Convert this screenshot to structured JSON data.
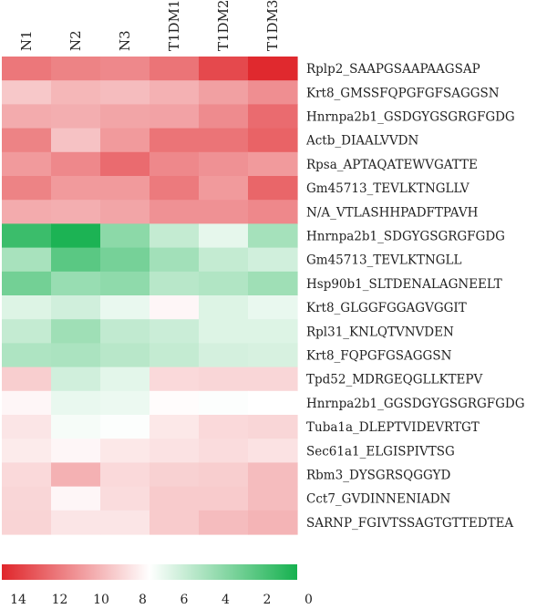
{
  "chart_data": {
    "type": "heatmap",
    "columns": [
      "N1",
      "N2",
      "N3",
      "T1DM1",
      "T1DM2",
      "T1DM3"
    ],
    "rows": [
      "Rplp2_SAAPGSAAPAAGSAP",
      "Krt8_GMSSFQPGFGFSAGGSN",
      "Hnrnpa2b1_GSDGYGSGRGFGDG",
      "Actb_DIAALVVDN",
      "Rpsa_APTAQATEWVGATTE",
      "Gm45713_TEVLKTNGLLV",
      "N/A_VTLASHHPADFTPAVH",
      "Hnrnpa2b1_SDGYGSGRGFGDG",
      "Gm45713_TEVLKTNGLL",
      "Hsp90b1_SLTDENALAGNEELT",
      "Krt8_GLGGFGGAGVGGIT",
      "Rpl31_KNLQTVNVDEN",
      "Krt8_FQPGFGSAGGSN",
      "Tpd52_MDRGEQGLLKTEPV",
      "Hnrnpa2b1_GGSDGYGSGRGFGDG",
      "Tuba1a_DLEPTVIDEVRTGT",
      "Sec61a1_ELGISPIVTSG",
      "Rbm3_DYSGRSQGGYD",
      "Cct7_GVDINNENIADN",
      "SARNP_FGIVTSSAGTGTTEDTEA"
    ],
    "values": [
      [
        12.2,
        11.8,
        11.6,
        12.3,
        13.8,
        14.9
      ],
      [
        9.4,
        10.0,
        9.8,
        10.2,
        10.8,
        11.4
      ],
      [
        10.4,
        10.3,
        10.6,
        10.7,
        11.5,
        12.6
      ],
      [
        11.8,
        9.6,
        11.0,
        12.3,
        12.3,
        12.9
      ],
      [
        11.0,
        11.6,
        12.6,
        11.6,
        11.3,
        11.0
      ],
      [
        11.8,
        11.0,
        11.0,
        12.1,
        11.0,
        12.8
      ],
      [
        10.4,
        10.3,
        10.6,
        11.3,
        11.3,
        11.6
      ],
      [
        1.2,
        0.2,
        3.8,
        5.6,
        6.7,
        4.6
      ],
      [
        4.7,
        2.2,
        3.1,
        4.5,
        5.6,
        6.0
      ],
      [
        3.0,
        4.2,
        3.9,
        5.2,
        5.0,
        4.4
      ],
      [
        6.4,
        6.0,
        6.8,
        7.8,
        6.4,
        6.8
      ],
      [
        5.6,
        4.4,
        5.5,
        5.8,
        6.4,
        6.4
      ],
      [
        4.9,
        4.8,
        5.2,
        5.6,
        6.1,
        6.2
      ],
      [
        9.2,
        6.0,
        6.6,
        8.8,
        8.9,
        8.9
      ],
      [
        7.8,
        6.8,
        6.9,
        7.6,
        7.4,
        7.5
      ],
      [
        8.4,
        7.2,
        7.4,
        8.3,
        8.8,
        8.9
      ],
      [
        8.2,
        7.8,
        8.3,
        8.5,
        8.7,
        8.5
      ],
      [
        8.8,
        10.2,
        8.8,
        9.1,
        9.2,
        9.8
      ],
      [
        8.9,
        7.8,
        8.7,
        9.3,
        9.3,
        9.8
      ],
      [
        9.0,
        8.4,
        8.4,
        9.3,
        9.8,
        10.1
      ]
    ],
    "colorbar": {
      "ticks": [
        14,
        12,
        10,
        8,
        6,
        4,
        2,
        0
      ],
      "range": [
        0,
        15
      ],
      "colors": {
        "high": "#e0262b",
        "mid": "#ffffff",
        "low": "#16b14f"
      }
    }
  }
}
